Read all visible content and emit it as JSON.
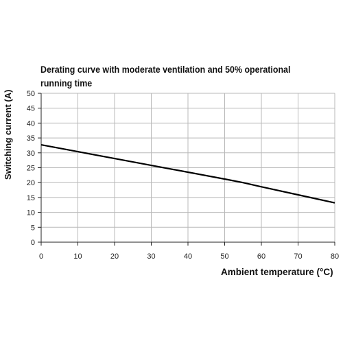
{
  "chart_data": {
    "type": "line",
    "title": "Derating curve with moderate ventilation and 50% operational running time",
    "xlabel": "Ambient temperature (°C)",
    "ylabel": "Switching current (A)",
    "xlim": [
      0,
      80
    ],
    "ylim": [
      0,
      50
    ],
    "xticks": [
      "0",
      "10",
      "20",
      "30",
      "40",
      "50",
      "60",
      "70",
      "80"
    ],
    "yticks": [
      "0",
      "5",
      "10",
      "15",
      "20",
      "25",
      "30",
      "35",
      "40",
      "45",
      "50"
    ],
    "grid": true,
    "series": [
      {
        "x": [
          0,
          10,
          20,
          30,
          40,
          50,
          55,
          60,
          70,
          80
        ],
        "values": [
          32.7,
          30.4,
          28.1,
          25.8,
          23.5,
          21.2,
          20.0,
          18.6,
          15.9,
          13.2
        ],
        "color": "#000000"
      }
    ]
  }
}
